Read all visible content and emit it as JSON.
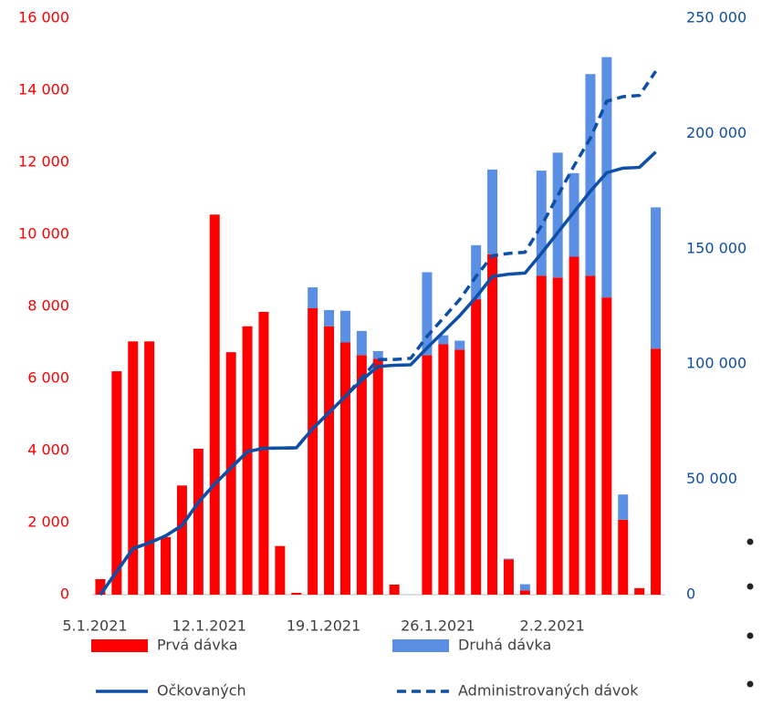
{
  "chart_data": {
    "type": "bar",
    "categories": [
      "5.1.2021",
      null,
      null,
      null,
      null,
      null,
      null,
      "12.1.2021",
      null,
      null,
      null,
      null,
      null,
      null,
      "19.1.2021",
      null,
      null,
      null,
      null,
      null,
      null,
      "26.1.2021",
      null,
      null,
      null,
      null,
      null,
      null,
      "2.2.2021",
      null,
      null,
      null,
      null,
      null,
      null
    ],
    "series": [
      {
        "name": "Prvá dávka",
        "type": "bar",
        "color": "#ff0000",
        "values": [
          430,
          6200,
          7030,
          7030,
          1600,
          3030,
          4050,
          10550,
          6730,
          7450,
          7850,
          1350,
          50,
          7950,
          7450,
          7000,
          6650,
          6550,
          280,
          0,
          6650,
          6950,
          6800,
          8200,
          9450,
          980,
          120,
          8850,
          8800,
          9380,
          8850,
          8250,
          2080,
          180,
          6830
        ]
      },
      {
        "name": "Druhá dávka",
        "type": "bar",
        "color": "#5b8fe3",
        "values": [
          0,
          0,
          0,
          0,
          0,
          0,
          0,
          0,
          0,
          0,
          0,
          0,
          0,
          580,
          450,
          880,
          670,
          210,
          0,
          0,
          2300,
          250,
          250,
          1500,
          2350,
          20,
          170,
          2920,
          3470,
          2320,
          5600,
          6670,
          700,
          0,
          3920
        ]
      },
      {
        "name": "Očkovaných",
        "type": "line",
        "axis": "y2",
        "color": "#0d4ea6",
        "dashed": false,
        "values": [
          0,
          10000,
          20000,
          22500,
          25500,
          30000,
          40000,
          48000,
          55000,
          62000,
          63500,
          63600,
          63700,
          72000,
          79000,
          86000,
          93000,
          99000,
          99500,
          99700,
          107000,
          114000,
          121000,
          129000,
          138000,
          139000,
          139500,
          148000,
          157000,
          166000,
          175000,
          183000,
          185000,
          185300,
          192000
        ]
      },
      {
        "name": "Administrovaných dávok",
        "type": "line",
        "axis": "y2",
        "color": "#0d4ea6",
        "dashed": true,
        "values": [
          0,
          10000,
          20000,
          22500,
          25500,
          30000,
          40000,
          48000,
          55000,
          62000,
          63500,
          63600,
          63700,
          72000,
          79000,
          86000,
          94000,
          102000,
          102000,
          102500,
          112000,
          120000,
          128000,
          138000,
          147000,
          148000,
          148500,
          160000,
          173000,
          186000,
          198000,
          214000,
          216000,
          216500,
          227000
        ]
      }
    ],
    "ylim": [
      0,
      16000
    ],
    "yticks": [
      0,
      {
        "value": 2000,
        "label": "2 000"
      },
      {
        "value": 4000,
        "label": "4 000"
      },
      {
        "value": 6000,
        "label": "6 000"
      },
      {
        "value": 8000,
        "label": "8 000"
      },
      {
        "value": 10000,
        "label": "10 000"
      },
      {
        "value": 12000,
        "label": "12 000"
      },
      {
        "value": 14000,
        "label": "14 000"
      },
      {
        "value": 16000,
        "label": "16 000"
      }
    ],
    "y2lim": [
      0,
      250000
    ],
    "y2ticks": [
      0,
      {
        "value": 50000,
        "label": "50 000"
      },
      {
        "value": 100000,
        "label": "100 000"
      },
      {
        "value": 150000,
        "label": "150 000"
      },
      {
        "value": 200000,
        "label": "200 000"
      },
      {
        "value": 250000,
        "label": "250 000"
      }
    ],
    "ytick_color": "#ff0000",
    "y2tick_color": "#0d4ea6",
    "grid": false
  }
}
